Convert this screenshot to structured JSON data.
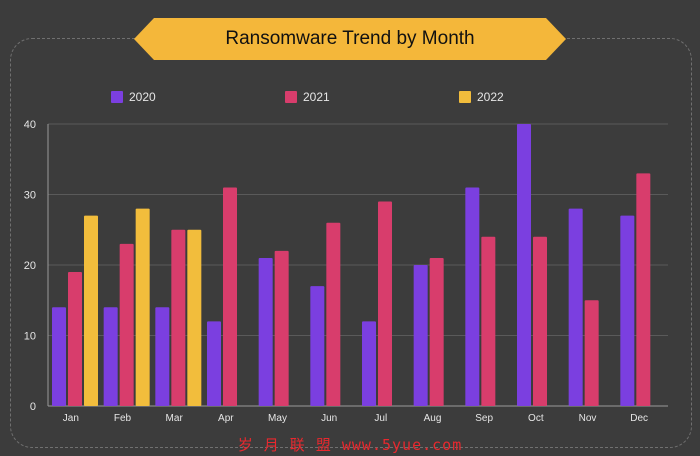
{
  "title": "Ransomware Trend by Month",
  "watermark": "岁 月 联 盟  www.5yue.com",
  "colors": {
    "background": "#3c3c3c",
    "banner": "#f4b73a",
    "series_2020": "#7b3fe0",
    "series_2021": "#d83d6c",
    "series_2022": "#f2bd3c",
    "grid": "#5a5a5a",
    "text": "#e6e6e6"
  },
  "chart_data": {
    "type": "bar",
    "title": "Ransomware Trend by Month",
    "categories": [
      "Jan",
      "Feb",
      "Mar",
      "Apr",
      "May",
      "Jun",
      "Jul",
      "Aug",
      "Sep",
      "Oct",
      "Nov",
      "Dec"
    ],
    "series": [
      {
        "name": "2020",
        "color": "#7b3fe0",
        "values": [
          14,
          14,
          14,
          12,
          21,
          17,
          12,
          20,
          31,
          40,
          28,
          27
        ]
      },
      {
        "name": "2021",
        "color": "#d83d6c",
        "values": [
          19,
          23,
          25,
          31,
          22,
          26,
          29,
          21,
          24,
          24,
          15,
          33
        ]
      },
      {
        "name": "2022",
        "color": "#f2bd3c",
        "values": [
          27,
          28,
          25,
          null,
          null,
          null,
          null,
          null,
          null,
          null,
          null,
          null
        ]
      }
    ],
    "yticks": [
      0,
      10,
      20,
      30,
      40
    ],
    "ylim": [
      0,
      40
    ],
    "grid": true,
    "legend_position": "top"
  }
}
